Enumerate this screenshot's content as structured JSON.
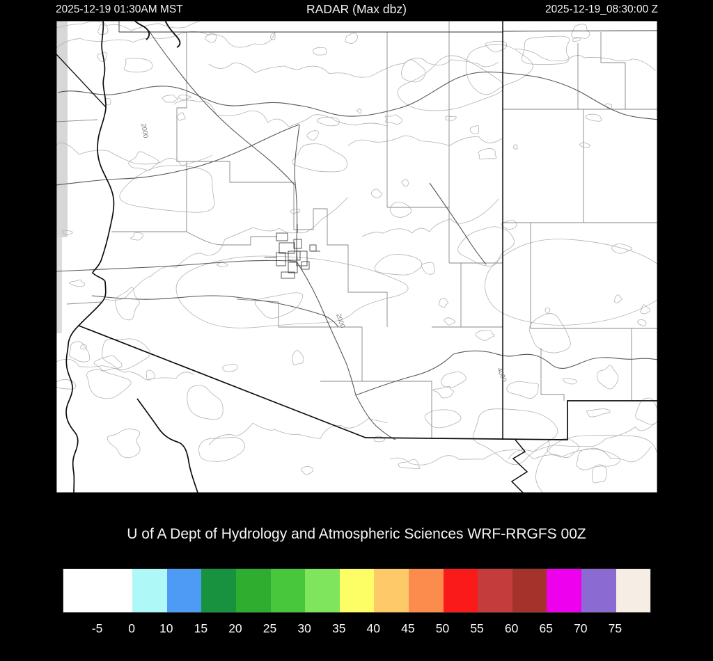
{
  "header": {
    "left_timestamp": "2025-12-19 01:30AM MST",
    "title": "RADAR (Max dbz)",
    "right_timestamp": "2025-12-19_08:30:00 Z"
  },
  "map": {
    "region": "Arizona and surrounding states terrain / boundary map",
    "contour_labels": [
      {
        "text": "2000"
      },
      {
        "text": "2000"
      },
      {
        "text": "4000"
      }
    ]
  },
  "caption": "U of A Dept of Hydrology and Atmospheric Sciences WRF-RRGFS 00Z",
  "colorbar": {
    "quantity": "Max dbz",
    "segment_colors": [
      "#ffffff",
      "#ffffff",
      "#aff8f8",
      "#4d9bf5",
      "#18923e",
      "#2fad2f",
      "#49c73c",
      "#7fe55c",
      "#fdfd66",
      "#fec968",
      "#fc8c4e",
      "#fb1a1a",
      "#c43c3c",
      "#a5332c",
      "#ee00ee",
      "#8b6ad1",
      "#f6ede5"
    ],
    "tick_labels": [
      "-5",
      "0",
      "10",
      "15",
      "20",
      "25",
      "30",
      "35",
      "40",
      "45",
      "50",
      "55",
      "60",
      "65",
      "70",
      "75"
    ]
  }
}
